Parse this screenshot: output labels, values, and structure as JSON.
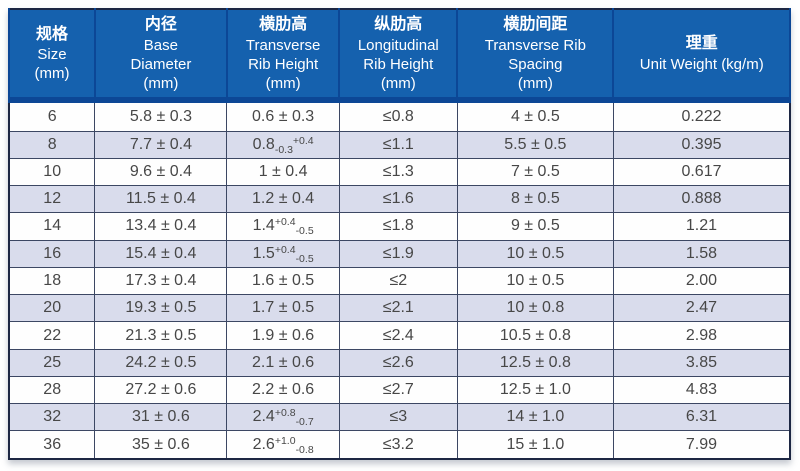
{
  "colors": {
    "header_bg": "#1561ae",
    "header_band": "#0c4796",
    "row_alt_bg": "#d9dcec",
    "row_bg": "#fefefe",
    "grid_line": "#3c4763",
    "outer_border": "#1d2743",
    "header_text": "#ffffff",
    "body_text": "#474747"
  },
  "table": {
    "columns": [
      {
        "key": "size",
        "cn": "规格",
        "en": [
          "Size",
          "(mm)"
        ]
      },
      {
        "key": "base_diameter",
        "cn": "内径",
        "en": [
          "Base",
          "Diameter",
          "(mm)"
        ]
      },
      {
        "key": "transverse_rib_height",
        "cn": "横肋高",
        "en": [
          "Transverse",
          "Rib Height",
          "(mm)"
        ]
      },
      {
        "key": "longitudinal_rib_height",
        "cn": "纵肋高",
        "en": [
          "Longitudinal",
          "Rib Height",
          "(mm)"
        ]
      },
      {
        "key": "transverse_rib_spacing",
        "cn": "横肋间距",
        "en": [
          "Transverse Rib",
          "Spacing",
          "(mm)"
        ]
      },
      {
        "key": "unit_weight",
        "cn": "理重",
        "en": [
          "Unit Weight (kg/m)"
        ]
      }
    ],
    "col_widths_pct": [
      11.0,
      16.9,
      14.4,
      15.1,
      20.0,
      22.6
    ],
    "rows": [
      {
        "size": "6",
        "base_diameter": "5.8 ± 0.3",
        "transverse_rib_height": [
          {
            "t": "0.6 ± 0.3"
          }
        ],
        "longitudinal_rib_height": "≤0.8",
        "transverse_rib_spacing": "4 ± 0.5",
        "unit_weight": "0.222",
        "shaded": false
      },
      {
        "size": "8",
        "base_diameter": "7.7 ± 0.4",
        "transverse_rib_height": [
          {
            "t": "0.8"
          },
          {
            "sub": "-0.3"
          },
          {
            "sup": "+0.4"
          }
        ],
        "longitudinal_rib_height": "≤1.1",
        "transverse_rib_spacing": "5.5 ± 0.5",
        "unit_weight": "0.395",
        "shaded": true
      },
      {
        "size": "10",
        "base_diameter": "9.6 ± 0.4",
        "transverse_rib_height": [
          {
            "t": "1 ± 0.4"
          }
        ],
        "longitudinal_rib_height": "≤1.3",
        "transverse_rib_spacing": "7 ± 0.5",
        "unit_weight": "0.617",
        "shaded": false
      },
      {
        "size": "12",
        "base_diameter": "11.5 ± 0.4",
        "transverse_rib_height": [
          {
            "t": "1.2 ± 0.4"
          }
        ],
        "longitudinal_rib_height": "≤1.6",
        "transverse_rib_spacing": "8 ± 0.5",
        "unit_weight": "0.888",
        "shaded": true
      },
      {
        "size": "14",
        "base_diameter": "13.4 ± 0.4",
        "transverse_rib_height": [
          {
            "t": "1.4"
          },
          {
            "sup": "+0.4"
          },
          {
            "sub": "-0.5"
          }
        ],
        "longitudinal_rib_height": "≤1.8",
        "transverse_rib_spacing": "9 ± 0.5",
        "unit_weight": "1.21",
        "shaded": false
      },
      {
        "size": "16",
        "base_diameter": "15.4 ± 0.4",
        "transverse_rib_height": [
          {
            "t": "1.5"
          },
          {
            "sup": "+0.4"
          },
          {
            "sub": "-0.5"
          }
        ],
        "longitudinal_rib_height": "≤1.9",
        "transverse_rib_spacing": "10 ± 0.5",
        "unit_weight": "1.58",
        "shaded": true
      },
      {
        "size": "18",
        "base_diameter": "17.3 ± 0.4",
        "transverse_rib_height": [
          {
            "t": "1.6 ± 0.5"
          }
        ],
        "longitudinal_rib_height": "≤2",
        "transverse_rib_spacing": "10 ± 0.5",
        "unit_weight": "2.00",
        "shaded": false
      },
      {
        "size": "20",
        "base_diameter": "19.3 ± 0.5",
        "transverse_rib_height": [
          {
            "t": "1.7 ± 0.5"
          }
        ],
        "longitudinal_rib_height": "≤2.1",
        "transverse_rib_spacing": "10 ± 0.8",
        "unit_weight": "2.47",
        "shaded": true
      },
      {
        "size": "22",
        "base_diameter": "21.3 ± 0.5",
        "transverse_rib_height": [
          {
            "t": "1.9 ± 0.6"
          }
        ],
        "longitudinal_rib_height": "≤2.4",
        "transverse_rib_spacing": "10.5 ± 0.8",
        "unit_weight": "2.98",
        "shaded": false
      },
      {
        "size": "25",
        "base_diameter": "24.2 ± 0.5",
        "transverse_rib_height": [
          {
            "t": "2.1 ± 0.6"
          }
        ],
        "longitudinal_rib_height": "≤2.6",
        "transverse_rib_spacing": "12.5 ± 0.8",
        "unit_weight": "3.85",
        "shaded": true
      },
      {
        "size": "28",
        "base_diameter": "27.2 ± 0.6",
        "transverse_rib_height": [
          {
            "t": "2.2 ± 0.6"
          }
        ],
        "longitudinal_rib_height": "≤2.7",
        "transverse_rib_spacing": "12.5 ± 1.0",
        "unit_weight": "4.83",
        "shaded": false
      },
      {
        "size": "32",
        "base_diameter": "31 ± 0.6",
        "transverse_rib_height": [
          {
            "t": "2.4"
          },
          {
            "sup": "+0.8"
          },
          {
            "sub": "-0.7"
          }
        ],
        "longitudinal_rib_height": "≤3",
        "transverse_rib_spacing": "14 ± 1.0",
        "unit_weight": "6.31",
        "shaded": true
      },
      {
        "size": "36",
        "base_diameter": "35 ± 0.6",
        "transverse_rib_height": [
          {
            "t": "2.6"
          },
          {
            "sup": "+1.0"
          },
          {
            "sub": "-0.8"
          }
        ],
        "longitudinal_rib_height": "≤3.2",
        "transverse_rib_spacing": "15 ± 1.0",
        "unit_weight": "7.99",
        "shaded": false
      }
    ]
  }
}
